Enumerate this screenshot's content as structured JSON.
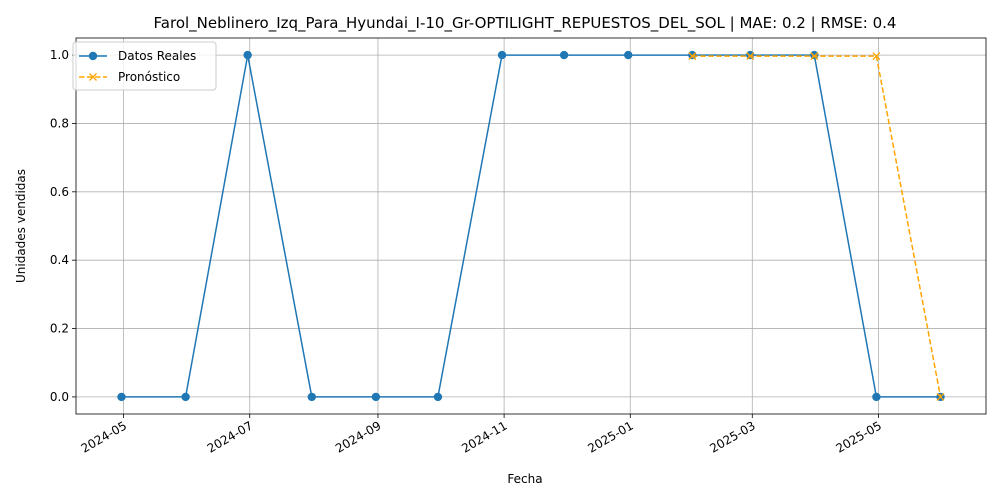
{
  "chart_data": {
    "type": "line",
    "title": "Farol_Neblinero_Izq_Para_Hyundai_I-10_Gr-OPTILIGHT_REPUESTOS_DEL_SOL | MAE: 0.2 | RMSE: 0.4",
    "xlabel": "Fecha",
    "ylabel": "Unidades vendidas",
    "x_ticks": [
      "2024-05",
      "2024-07",
      "2024-09",
      "2024-11",
      "2025-01",
      "2025-03",
      "2025-05"
    ],
    "y_ticks": [
      "0.0",
      "0.2",
      "0.4",
      "0.6",
      "0.8",
      "1.0"
    ],
    "ylim": [
      -0.05,
      1.05
    ],
    "grid": true,
    "legend_position": "top-left",
    "series": [
      {
        "name": "Datos Reales",
        "color": "#1f77b4",
        "style": "solid",
        "marker": "circle",
        "x": [
          "2024-04-30",
          "2024-05-31",
          "2024-06-30",
          "2024-07-31",
          "2024-08-31",
          "2024-09-30",
          "2024-10-31",
          "2024-11-30",
          "2024-12-31",
          "2025-01-31",
          "2025-02-28",
          "2025-03-31",
          "2025-04-30",
          "2025-05-31"
        ],
        "values": [
          0,
          0,
          1,
          0,
          0,
          0,
          1,
          1,
          1,
          1,
          1,
          1,
          0,
          0
        ]
      },
      {
        "name": "Pronóstico",
        "color": "#ffa500",
        "style": "dashed",
        "marker": "x",
        "x": [
          "2025-01-31",
          "2025-02-28",
          "2025-03-31",
          "2025-04-30",
          "2025-05-31"
        ],
        "values": [
          0.997,
          0.997,
          0.997,
          0.997,
          0
        ]
      }
    ]
  }
}
